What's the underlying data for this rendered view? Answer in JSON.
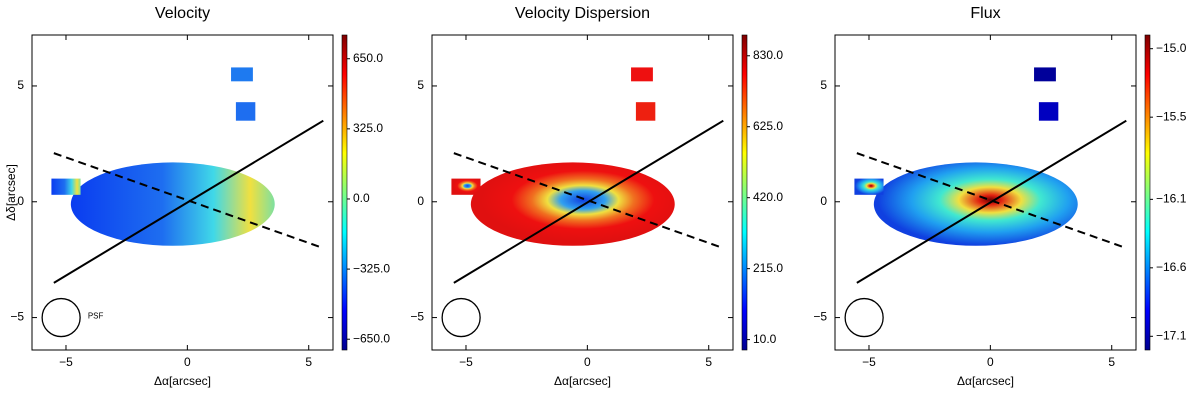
{
  "charts": [
    {
      "type": "map",
      "title": "Velocity",
      "xlabel": "Δα[arcsec]",
      "ylabel": "Δδ[arcsec]",
      "annotation": "PSF",
      "xlim": [
        -6.4,
        6.0
      ],
      "ylim": [
        -6.4,
        7.2
      ],
      "xticks": [
        {
          "value": -5,
          "label": "−5"
        },
        0,
        5
      ],
      "yticks": [
        {
          "value": -5,
          "label": "−5"
        },
        0,
        5
      ],
      "lines": [
        {
          "x": [
            -5.5,
            5.6
          ],
          "y": [
            -3.5,
            3.5
          ],
          "style": "solid"
        },
        {
          "x": [
            -5.5,
            5.6
          ],
          "y": [
            2.1,
            -2.0
          ],
          "style": "dashed"
        }
      ],
      "colorbar": {
        "lim": [
          -700,
          760
        ],
        "ticks": [
          {
            "value": 650,
            "label": "650.0"
          },
          {
            "value": 325,
            "label": "325.0"
          },
          {
            "value": 0,
            "label": "0.0"
          },
          {
            "value": -325,
            "label": "−325.0"
          },
          {
            "value": -650,
            "label": "−650.0"
          }
        ]
      }
    },
    {
      "type": "map",
      "title": "Velocity Dispersion",
      "xlabel": "Δα[arcsec]",
      "xlim": [
        -6.4,
        6.0
      ],
      "ylim": [
        -6.4,
        7.2
      ],
      "xticks": [
        {
          "value": -5,
          "label": "−5"
        },
        0,
        5
      ],
      "yticks": [
        {
          "value": -5,
          "label": "−5"
        },
        0,
        5
      ],
      "lines": [
        {
          "x": [
            -5.5,
            5.6
          ],
          "y": [
            -3.5,
            3.5
          ],
          "style": "solid"
        },
        {
          "x": [
            -5.5,
            5.6
          ],
          "y": [
            2.1,
            -2.0
          ],
          "style": "dashed"
        }
      ],
      "colorbar": {
        "lim": [
          -20,
          890
        ],
        "ticks": [
          {
            "value": 830,
            "label": "830.0"
          },
          {
            "value": 625,
            "label": "625.0"
          },
          {
            "value": 420,
            "label": "420.0"
          },
          {
            "value": 215,
            "label": "215.0"
          },
          {
            "value": 10,
            "label": "10.0"
          }
        ]
      }
    },
    {
      "type": "map",
      "title": "Flux",
      "xlabel": "Δα[arcsec]",
      "xlim": [
        -6.4,
        6.0
      ],
      "ylim": [
        -6.4,
        7.2
      ],
      "xticks": [
        {
          "value": -5,
          "label": "−5"
        },
        0,
        5
      ],
      "yticks": [
        {
          "value": -5,
          "label": "−5"
        },
        0,
        5
      ],
      "lines": [
        {
          "x": [
            -5.5,
            5.6
          ],
          "y": [
            -3.5,
            3.5
          ],
          "style": "solid"
        },
        {
          "x": [
            -5.5,
            5.6
          ],
          "y": [
            2.1,
            -2.0
          ],
          "style": "dashed"
        }
      ],
      "colorbar": {
        "lim": [
          -17.2,
          -14.9
        ],
        "ticks": [
          {
            "value": -15.0,
            "label": "−15.0"
          },
          {
            "value": -15.5,
            "label": "−15.5"
          },
          {
            "value": -16.1,
            "label": "−16.1"
          },
          {
            "value": -16.6,
            "label": "−16.6"
          },
          {
            "value": -17.1,
            "label": "−17.1"
          }
        ]
      }
    }
  ]
}
